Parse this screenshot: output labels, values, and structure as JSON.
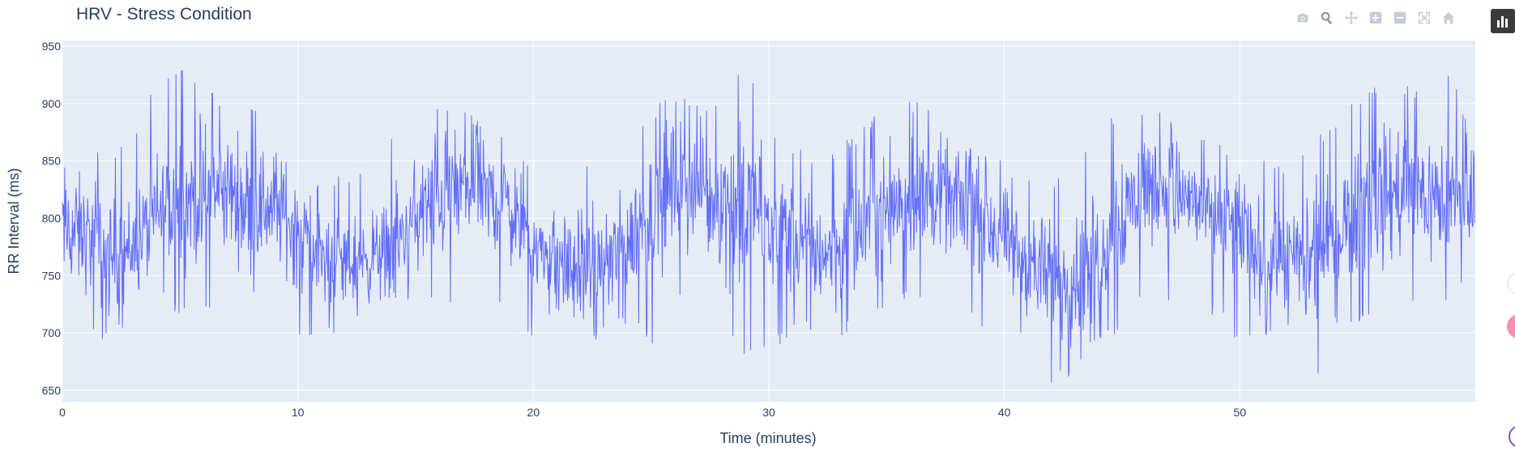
{
  "modebar": {
    "icons": [
      "camera-icon",
      "zoom-icon",
      "pan-icon",
      "zoom-in-icon",
      "zoom-out-icon",
      "autoscale-icon",
      "home-icon"
    ],
    "icon_color": "#c4ccd6",
    "active_color": "#8a98ab"
  },
  "chart_data": {
    "type": "line",
    "title": "HRV - Stress Condition",
    "xlabel": "Time (minutes)",
    "ylabel": "RR Interval (ms)",
    "xlim": [
      0,
      60
    ],
    "ylim": [
      640,
      955
    ],
    "xticks": [
      0,
      10,
      20,
      30,
      40,
      50
    ],
    "yticks": [
      650,
      700,
      750,
      800,
      850,
      900,
      950
    ],
    "grid": true,
    "legend": "none",
    "colors": {
      "line": "#636efa",
      "plot_bg": "#e5ecf6",
      "grid": "#ffffff",
      "text": "#2a3f5f"
    },
    "series": [
      {
        "x": [
          0,
          1,
          2,
          3,
          4,
          5,
          6,
          7,
          8,
          9,
          10,
          11,
          12,
          13,
          14,
          15,
          16,
          17,
          18,
          19,
          20,
          21,
          22,
          23,
          24,
          25,
          26,
          27,
          28,
          29,
          30,
          31,
          32,
          33,
          34,
          35,
          36,
          37,
          38,
          39,
          40,
          41,
          42,
          43,
          44,
          45,
          46,
          47,
          48,
          49,
          50,
          51,
          52,
          53,
          54,
          55,
          56,
          57,
          58,
          59,
          60
        ],
        "y": [
          790,
          785,
          765,
          775,
          800,
          815,
          820,
          825,
          810,
          812,
          790,
          765,
          760,
          765,
          775,
          800,
          820,
          825,
          820,
          810,
          775,
          760,
          755,
          760,
          775,
          810,
          830,
          825,
          815,
          810,
          800,
          780,
          770,
          775,
          790,
          815,
          820,
          820,
          815,
          800,
          780,
          760,
          745,
          750,
          770,
          805,
          830,
          825,
          815,
          800,
          790,
          765,
          760,
          760,
          780,
          815,
          820,
          825,
          820,
          815,
          800
        ],
        "min": [
          712,
          705,
          685,
          720,
          725,
          713,
          713,
          720,
          730,
          700,
          690,
          690,
          698,
          720,
          728,
          730,
          725,
          720,
          730,
          710,
          697,
          682,
          678,
          700,
          708,
          688,
          720,
          728,
          700,
          680,
          683,
          695,
          705,
          690,
          715,
          720,
          725,
          718,
          730,
          700,
          700,
          685,
          650,
          665,
          690,
          700,
          730,
          725,
          720,
          715,
          690,
          690,
          700,
          645,
          700,
          705,
          710,
          715,
          730,
          720,
          778
        ],
        "max": [
          909,
          870,
          860,
          870,
          925,
          930,
          925,
          900,
          905,
          875,
          860,
          830,
          840,
          850,
          870,
          910,
          905,
          900,
          880,
          875,
          850,
          840,
          850,
          845,
          865,
          895,
          910,
          900,
          905,
          937,
          880,
          860,
          860,
          865,
          880,
          900,
          905,
          895,
          870,
          860,
          850,
          840,
          830,
          850,
          870,
          905,
          895,
          890,
          885,
          870,
          865,
          850,
          850,
          870,
          880,
          910,
          920,
          915,
          920,
          930,
          855
        ]
      }
    ]
  }
}
